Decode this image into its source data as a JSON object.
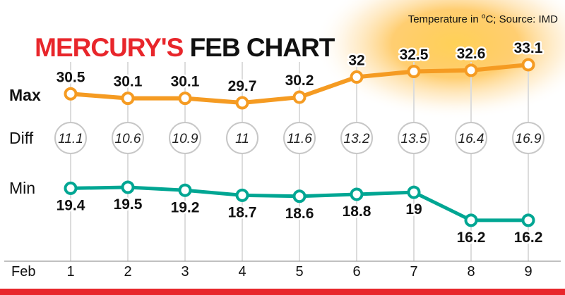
{
  "header": {
    "title_red": "MERCURY'S",
    "title_black": " FEB CHART",
    "source_pre": "Temperature in ",
    "source_sup": "o",
    "source_post": "C; Source: IMD"
  },
  "labels": {
    "max": "Max",
    "diff": "Diff",
    "min": "Min"
  },
  "axis": {
    "month_label": "Feb"
  },
  "colors": {
    "accent_red": "#e8262b",
    "max_line": "#f59b22",
    "min_line": "#00a693",
    "grid": "#dcdcdc",
    "axis_line": "#9a9a9a",
    "diff_circle_border": "#c7c7c7",
    "text": "#111111"
  },
  "chart_data": {
    "type": "line",
    "title": "MERCURY'S FEB CHART",
    "subtitle": "Temperature in °C; Source: IMD",
    "unit": "°C",
    "source": "IMD",
    "x_axis_label": "Feb",
    "categories": [
      "1",
      "2",
      "3",
      "4",
      "5",
      "6",
      "7",
      "8",
      "9"
    ],
    "series": [
      {
        "name": "Max",
        "values": [
          30.5,
          30.1,
          30.1,
          29.7,
          30.2,
          32,
          32.5,
          32.6,
          33.1
        ]
      },
      {
        "name": "Min",
        "values": [
          19.4,
          19.5,
          19.2,
          18.7,
          18.6,
          18.8,
          19,
          16.2,
          16.2
        ]
      },
      {
        "name": "Diff",
        "values": [
          11.1,
          10.6,
          10.9,
          11,
          11.6,
          13.2,
          13.5,
          16.4,
          16.9
        ]
      }
    ],
    "legend_position": "left-row-labels",
    "grid": "vertical-only"
  }
}
